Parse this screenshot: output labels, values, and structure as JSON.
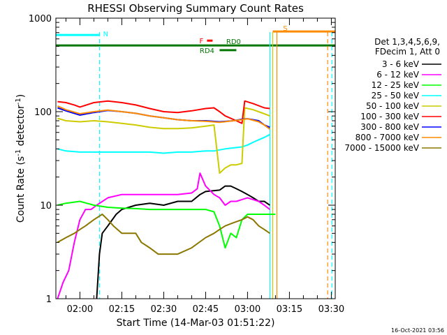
{
  "chart_data": {
    "type": "line",
    "title": "RHESSI Observing Summary Count Rates",
    "xlabel": "Start Time (14-Mar-03 01:51:22)",
    "ylabel_main": "Count Rate (s",
    "ylabel_sup1": "-1",
    "ylabel_mid": " detector",
    "ylabel_sup2": "-1",
    "ylabel_end": ")",
    "yscale": "log",
    "ylim": [
      1,
      1000
    ],
    "xlim_minutes": [
      111.4,
      211.4
    ],
    "xticks": [
      {
        "label": "02:00",
        "minutes": 120
      },
      {
        "label": "02:15",
        "minutes": 135
      },
      {
        "label": "02:30",
        "minutes": 150
      },
      {
        "label": "02:45",
        "minutes": 165
      },
      {
        "label": "03:00",
        "minutes": 180
      },
      {
        "label": "03:15",
        "minutes": 195
      },
      {
        "label": "03:30",
        "minutes": 210
      }
    ],
    "yticks": [
      {
        "label": "1",
        "value": 1
      },
      {
        "label": "10",
        "value": 10
      },
      {
        "label": "100",
        "value": 100
      },
      {
        "label": "1000",
        "value": 1000
      }
    ],
    "legend": {
      "position": "right",
      "header1": "Det 1,3,4,5,6,9,",
      "header2": "FDecim 1, Att 0"
    },
    "series": [
      {
        "name": "3 - 6 keV",
        "color": "#000000",
        "points": [
          [
            126,
            1
          ],
          [
            127,
            3
          ],
          [
            128,
            5
          ],
          [
            130,
            6
          ],
          [
            133,
            8
          ],
          [
            135,
            9
          ],
          [
            140,
            10
          ],
          [
            145,
            10.5
          ],
          [
            150,
            10
          ],
          [
            155,
            11
          ],
          [
            160,
            11
          ],
          [
            163,
            13
          ],
          [
            165,
            14
          ],
          [
            170,
            14.5
          ],
          [
            172,
            16
          ],
          [
            174,
            16
          ],
          [
            176,
            15
          ],
          [
            178,
            14
          ],
          [
            180,
            13
          ],
          [
            182,
            12
          ],
          [
            184,
            11
          ],
          [
            186,
            11
          ],
          [
            188,
            10
          ]
        ]
      },
      {
        "name": "6 - 12 keV",
        "color": "#ff00ff",
        "points": [
          [
            112,
            1
          ],
          [
            114,
            1.5
          ],
          [
            116,
            2
          ],
          [
            118,
            4
          ],
          [
            120,
            7
          ],
          [
            122,
            9
          ],
          [
            124,
            9
          ],
          [
            126,
            10
          ],
          [
            130,
            12
          ],
          [
            135,
            13
          ],
          [
            140,
            13
          ],
          [
            145,
            13
          ],
          [
            150,
            13
          ],
          [
            155,
            13
          ],
          [
            160,
            13.5
          ],
          [
            162,
            15
          ],
          [
            163,
            22
          ],
          [
            165,
            16
          ],
          [
            168,
            13
          ],
          [
            170,
            12
          ],
          [
            172,
            10
          ],
          [
            174,
            11
          ],
          [
            176,
            11
          ],
          [
            178,
            11.5
          ],
          [
            180,
            12
          ],
          [
            184,
            11
          ],
          [
            186,
            10
          ],
          [
            188,
            9
          ]
        ]
      },
      {
        "name": "12 - 25 keV",
        "color": "#00ff00",
        "points": [
          [
            112,
            10
          ],
          [
            115,
            10.5
          ],
          [
            120,
            11
          ],
          [
            125,
            10
          ],
          [
            130,
            9.5
          ],
          [
            135,
            9.3
          ],
          [
            140,
            9.2
          ],
          [
            145,
            9
          ],
          [
            150,
            9
          ],
          [
            155,
            9
          ],
          [
            160,
            9
          ],
          [
            165,
            9
          ],
          [
            168,
            8.5
          ],
          [
            170,
            6
          ],
          [
            172,
            3.5
          ],
          [
            174,
            5
          ],
          [
            176,
            4.5
          ],
          [
            178,
            7
          ],
          [
            180,
            8
          ],
          [
            184,
            8
          ],
          [
            188,
            8
          ],
          [
            190,
            8
          ]
        ]
      },
      {
        "name": "25 - 50 keV",
        "color": "#00ffff",
        "points": [
          [
            112,
            40
          ],
          [
            115,
            38
          ],
          [
            120,
            37
          ],
          [
            125,
            37
          ],
          [
            130,
            37
          ],
          [
            135,
            37
          ],
          [
            140,
            37
          ],
          [
            145,
            37
          ],
          [
            150,
            36
          ],
          [
            155,
            37
          ],
          [
            160,
            37
          ],
          [
            165,
            38
          ],
          [
            168,
            38
          ],
          [
            170,
            39
          ],
          [
            172,
            40
          ],
          [
            175,
            41
          ],
          [
            178,
            42
          ],
          [
            180,
            44
          ],
          [
            182,
            47
          ],
          [
            184,
            50
          ],
          [
            186,
            53
          ],
          [
            188,
            57
          ]
        ]
      },
      {
        "name": "50 - 100 keV",
        "color": "#cccc00",
        "points": [
          [
            112,
            85
          ],
          [
            115,
            80
          ],
          [
            120,
            78
          ],
          [
            125,
            80
          ],
          [
            130,
            78
          ],
          [
            135,
            75
          ],
          [
            140,
            72
          ],
          [
            145,
            68
          ],
          [
            150,
            66
          ],
          [
            155,
            66
          ],
          [
            160,
            67
          ],
          [
            165,
            70
          ],
          [
            168,
            72
          ],
          [
            170,
            22
          ],
          [
            172,
            25
          ],
          [
            174,
            27
          ],
          [
            176,
            27
          ],
          [
            178,
            28
          ],
          [
            179,
            110
          ],
          [
            182,
            105
          ],
          [
            186,
            95
          ],
          [
            188,
            90
          ]
        ]
      },
      {
        "name": "100 - 300 keV",
        "color": "#ff0000",
        "points": [
          [
            112,
            128
          ],
          [
            115,
            125
          ],
          [
            118,
            118
          ],
          [
            120,
            112
          ],
          [
            125,
            125
          ],
          [
            130,
            130
          ],
          [
            135,
            125
          ],
          [
            140,
            118
          ],
          [
            145,
            108
          ],
          [
            150,
            100
          ],
          [
            155,
            98
          ],
          [
            160,
            102
          ],
          [
            165,
            108
          ],
          [
            168,
            110
          ],
          [
            170,
            100
          ],
          [
            172,
            90
          ],
          [
            176,
            80
          ],
          [
            178,
            75
          ],
          [
            179,
            130
          ],
          [
            182,
            122
          ],
          [
            186,
            110
          ],
          [
            188,
            108
          ]
        ]
      },
      {
        "name": "300 - 800 keV",
        "color": "#0000ff",
        "points": [
          [
            112,
            110
          ],
          [
            115,
            102
          ],
          [
            120,
            92
          ],
          [
            125,
            98
          ],
          [
            130,
            103
          ],
          [
            135,
            100
          ],
          [
            140,
            96
          ],
          [
            145,
            90
          ],
          [
            150,
            86
          ],
          [
            155,
            82
          ],
          [
            160,
            80
          ],
          [
            165,
            80
          ],
          [
            170,
            78
          ],
          [
            175,
            80
          ],
          [
            178,
            83
          ],
          [
            180,
            84
          ],
          [
            184,
            80
          ],
          [
            186,
            72
          ],
          [
            188,
            68
          ]
        ]
      },
      {
        "name": "800 - 7000 keV",
        "color": "#ff8c00",
        "points": [
          [
            112,
            115
          ],
          [
            115,
            105
          ],
          [
            120,
            95
          ],
          [
            125,
            100
          ],
          [
            130,
            104
          ],
          [
            135,
            100
          ],
          [
            140,
            96
          ],
          [
            145,
            90
          ],
          [
            150,
            86
          ],
          [
            155,
            82
          ],
          [
            160,
            80
          ],
          [
            165,
            79
          ],
          [
            170,
            77
          ],
          [
            175,
            80
          ],
          [
            178,
            82
          ],
          [
            180,
            84
          ],
          [
            184,
            78
          ],
          [
            186,
            72
          ],
          [
            188,
            65
          ]
        ]
      },
      {
        "name": "7000 - 15000 keV",
        "color": "#8b7700",
        "points": [
          [
            112,
            4
          ],
          [
            115,
            4.5
          ],
          [
            118,
            5
          ],
          [
            120,
            5.5
          ],
          [
            122,
            6
          ],
          [
            125,
            7
          ],
          [
            128,
            8
          ],
          [
            130,
            7
          ],
          [
            132,
            6
          ],
          [
            135,
            5
          ],
          [
            138,
            5
          ],
          [
            140,
            5
          ],
          [
            142,
            4
          ],
          [
            145,
            3.5
          ],
          [
            148,
            3
          ],
          [
            150,
            3
          ],
          [
            155,
            3
          ],
          [
            160,
            3.5
          ],
          [
            165,
            4.5
          ],
          [
            168,
            5
          ],
          [
            170,
            5.5
          ],
          [
            172,
            6
          ],
          [
            175,
            6.5
          ],
          [
            178,
            7
          ],
          [
            180,
            7.5
          ],
          [
            182,
            7
          ],
          [
            184,
            6
          ],
          [
            186,
            5.5
          ],
          [
            188,
            5
          ]
        ]
      }
    ],
    "bars": [
      {
        "label": "N",
        "color": "#00ffff",
        "start": 111.4,
        "end": 127,
        "level": 660
      },
      {
        "label": "S",
        "color": "#ff8c00",
        "start": 189,
        "end": 211.4,
        "level": 720
      },
      {
        "label": "F",
        "color": "#ff0000",
        "start": 165.5,
        "end": 167.5,
        "level": 575
      },
      {
        "label": "RD0",
        "color": "#007700",
        "start": 111.4,
        "end": 211.4,
        "level": 510
      },
      {
        "label": "RD4",
        "color": "#007700",
        "start": 170,
        "end": 176,
        "level": 455
      }
    ],
    "vlines": [
      {
        "minutes": 127,
        "color": "#00ffff",
        "dashed": true
      },
      {
        "minutes": 188,
        "color": "#00ffff",
        "dashed": false
      },
      {
        "minutes": 189,
        "color": "#cccc00",
        "dashed": false
      },
      {
        "minutes": 208.7,
        "color": "#ff8c00",
        "dashed": true
      },
      {
        "minutes": 210.2,
        "color": "#00ffff",
        "dashed": true
      },
      {
        "minutes": 190.5,
        "color": "#ff8c00",
        "dashed": false
      }
    ]
  },
  "footer": {
    "date": "16-Oct-2021 03:56"
  }
}
